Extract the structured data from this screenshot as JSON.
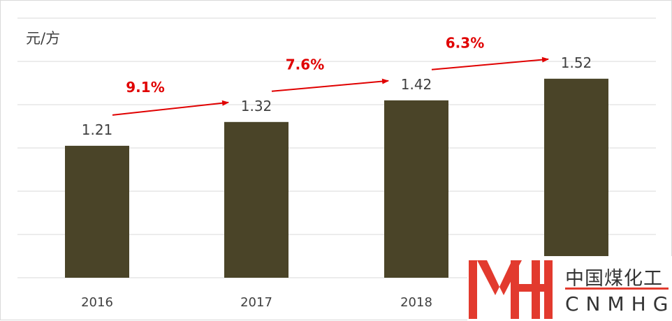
{
  "chart_data": {
    "type": "bar",
    "unit_label": "元/方",
    "categories": [
      "2016",
      "2017",
      "2018",
      ""
    ],
    "values": [
      1.21,
      1.32,
      1.42,
      1.52
    ],
    "value_labels": [
      "1.21",
      "1.32",
      "1.42",
      "1.52"
    ],
    "growth_annotations": [
      "9.1%",
      "7.6%",
      "6.3%"
    ],
    "ylim": [
      0.6,
      1.8
    ],
    "grid": true,
    "bar_color": "#4a4428",
    "label_color": "#404040",
    "annotation_color": "#e00000"
  },
  "logo": {
    "mark": "MH",
    "cn_text": "中国煤化工",
    "en_text": "CNMHG",
    "color": "#e23a2e"
  }
}
